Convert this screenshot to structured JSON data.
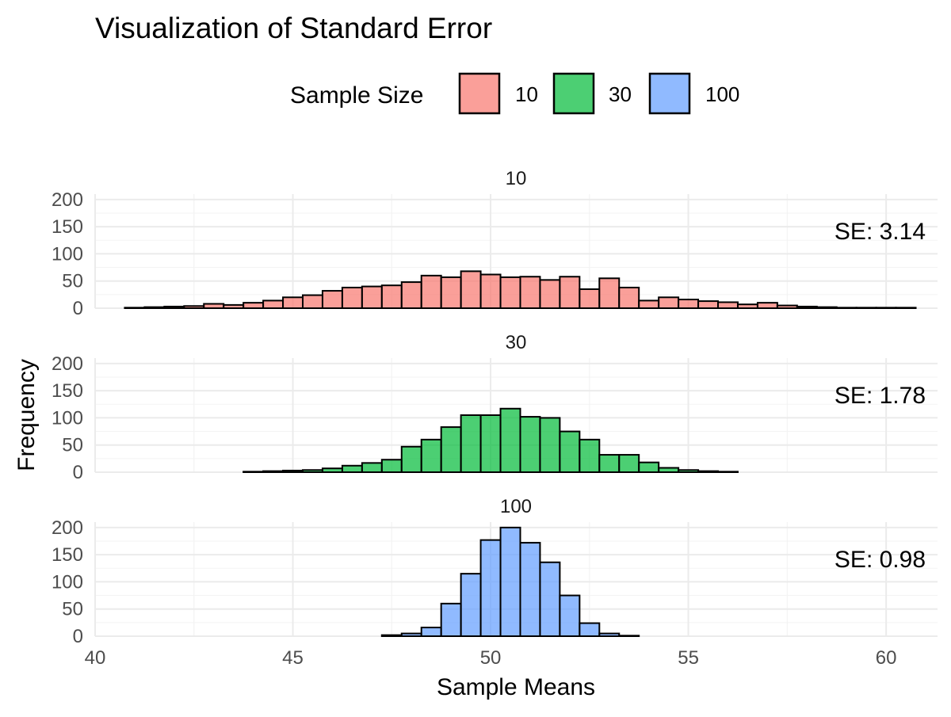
{
  "chart_data": {
    "type": "bar",
    "title": "Visualization of Standard Error",
    "xlabel": "Sample Means",
    "ylabel": "Frequency",
    "xlim": [
      40,
      61.3
    ],
    "ylim": [
      0,
      210
    ],
    "x_ticks": [
      40,
      45,
      50,
      55,
      60
    ],
    "y_ticks": [
      0,
      50,
      100,
      150,
      200
    ],
    "bin_width": 0.5,
    "bin_start": 40.75,
    "grid": true,
    "legend": {
      "title": "Sample Size",
      "placement": "top",
      "items": [
        {
          "label": "10",
          "color": "#F8766D"
        },
        {
          "label": "30",
          "color": "#00BA38"
        },
        {
          "label": "100",
          "color": "#619CFF"
        }
      ]
    },
    "panels": [
      {
        "strip": "10",
        "se_label": "SE: 3.14",
        "color": "#F8766D",
        "counts": [
          1,
          2,
          3,
          4,
          8,
          6,
          10,
          14,
          20,
          24,
          32,
          38,
          40,
          42,
          48,
          60,
          57,
          68,
          62,
          57,
          58,
          52,
          58,
          35,
          55,
          38,
          14,
          20,
          16,
          13,
          11,
          7,
          10,
          5,
          3,
          2,
          1,
          1,
          1,
          1
        ]
      },
      {
        "strip": "30",
        "se_label": "SE: 1.78",
        "color": "#00BA38",
        "counts": [
          0,
          0,
          0,
          0,
          0,
          0,
          1,
          2,
          3,
          4,
          7,
          12,
          17,
          23,
          47,
          60,
          83,
          105,
          105,
          117,
          102,
          100,
          75,
          60,
          32,
          32,
          18,
          8,
          4,
          2,
          1,
          0,
          0,
          0,
          0,
          0,
          0,
          0,
          0,
          0
        ]
      },
      {
        "strip": "100",
        "se_label": "SE: 0.98",
        "color": "#619CFF",
        "counts": [
          0,
          0,
          0,
          0,
          0,
          0,
          0,
          0,
          0,
          0,
          0,
          0,
          0,
          2,
          5,
          16,
          60,
          115,
          177,
          200,
          172,
          136,
          75,
          24,
          5,
          1,
          0,
          0,
          0,
          0,
          0,
          0,
          0,
          0,
          0,
          0,
          0,
          0,
          0,
          0
        ]
      }
    ]
  }
}
